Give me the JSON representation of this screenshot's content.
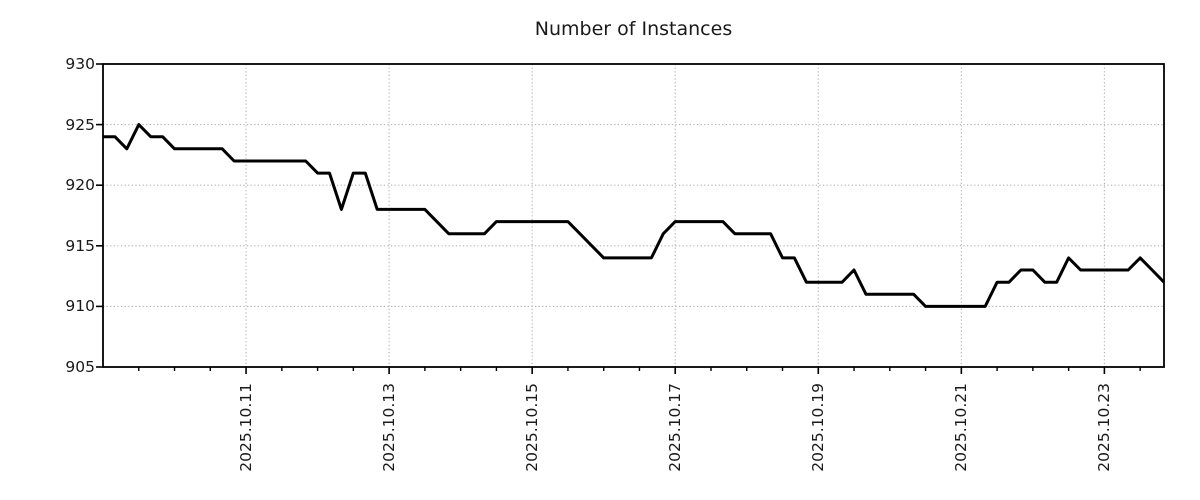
{
  "chart_data": {
    "type": "line",
    "title": "Number of Instances",
    "ylabel": "",
    "xlabel": "",
    "ylim": [
      905,
      930
    ],
    "y_ticks": [
      930,
      925,
      920,
      915,
      910,
      905
    ],
    "x_tick_labels": [
      "2025.10.11",
      "2025.10.13",
      "2025.10.15",
      "2025.10.17",
      "2025.10.19",
      "2025.10.21",
      "2025.10.23"
    ],
    "x_major_tick_indices": [
      12,
      24,
      36,
      48,
      60,
      72,
      84
    ],
    "x_minor_tick_step": 3,
    "points_per_day": 6,
    "grid": true,
    "legend": "none",
    "line_color": "#000000",
    "grid_color": "#b0b0b0",
    "series": [
      {
        "name": "instances",
        "values": [
          924,
          924,
          923,
          925,
          924,
          924,
          923,
          923,
          923,
          923,
          923,
          922,
          922,
          922,
          922,
          922,
          922,
          922,
          921,
          921,
          918,
          921,
          921,
          918,
          918,
          918,
          918,
          918,
          917,
          916,
          916,
          916,
          916,
          917,
          917,
          917,
          917,
          917,
          917,
          917,
          916,
          915,
          914,
          914,
          914,
          914,
          914,
          916,
          917,
          917,
          917,
          917,
          917,
          916,
          916,
          916,
          916,
          914,
          914,
          912,
          912,
          912,
          912,
          913,
          911,
          911,
          911,
          911,
          911,
          910,
          910,
          910,
          910,
          910,
          910,
          912,
          912,
          913,
          913,
          912,
          912,
          914,
          913,
          913,
          913,
          913,
          913,
          914,
          913,
          912
        ]
      }
    ]
  }
}
